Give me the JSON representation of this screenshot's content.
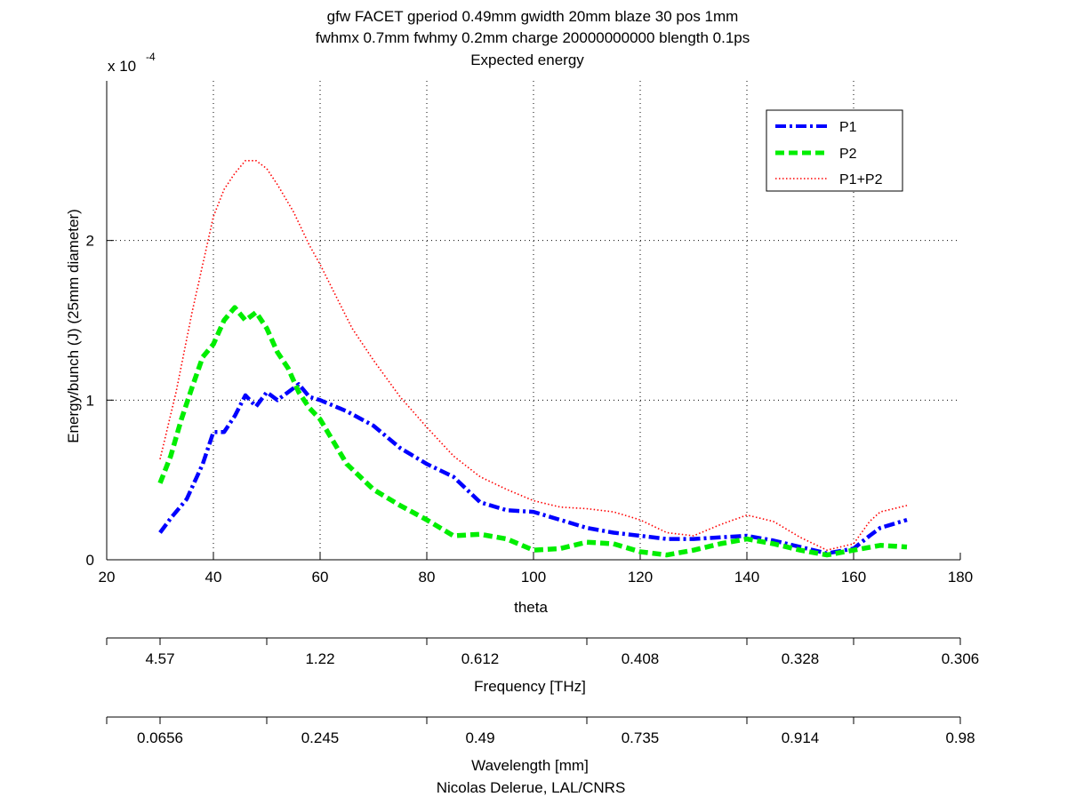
{
  "chart_data": {
    "type": "line",
    "title_lines": [
      "gfw FACET gperiod 0.49mm gwidth 20mm blaze 30 pos 1mm",
      "fwhmx 0.7mm fwhmy 0.2mm charge 20000000000 blength 0.1ps",
      "Expected energy"
    ],
    "xlabel": "theta",
    "ylabel": "Energy/bunch (J) (25mm diameter)",
    "y_multiplier": {
      "base": "x 10",
      "exponent": "-4"
    },
    "xlim": [
      20,
      180
    ],
    "ylim": [
      0,
      3
    ],
    "x_ticks": [
      20,
      40,
      60,
      80,
      100,
      120,
      140,
      160,
      180
    ],
    "x_tick_labels": [
      "20",
      "40",
      "60",
      "80",
      "100",
      "120",
      "140",
      "160",
      "180"
    ],
    "y_ticks": [
      0,
      1,
      2
    ],
    "y_tick_labels": [
      "0",
      "1",
      "2"
    ],
    "grid": true,
    "legend_position": "top-right",
    "series": [
      {
        "name": "P1",
        "color": "#0000ff",
        "style": "dashdot",
        "x": [
          30,
          32,
          35,
          38,
          40,
          42,
          44,
          46,
          48,
          50,
          52,
          54,
          56,
          58,
          60,
          65,
          70,
          75,
          80,
          85,
          90,
          95,
          100,
          105,
          110,
          115,
          120,
          125,
          130,
          135,
          140,
          145,
          150,
          155,
          160,
          163,
          165,
          170
        ],
        "y": [
          0.17,
          0.26,
          0.38,
          0.6,
          0.8,
          0.8,
          0.9,
          1.03,
          0.96,
          1.05,
          1.0,
          1.05,
          1.1,
          1.02,
          1.0,
          0.93,
          0.84,
          0.7,
          0.6,
          0.52,
          0.36,
          0.31,
          0.3,
          0.25,
          0.2,
          0.17,
          0.15,
          0.13,
          0.13,
          0.14,
          0.15,
          0.12,
          0.08,
          0.04,
          0.07,
          0.15,
          0.2,
          0.25
        ]
      },
      {
        "name": "P2",
        "color": "#00ee00",
        "style": "dashed",
        "x": [
          30,
          32,
          34,
          36,
          38,
          40,
          42,
          44,
          46,
          48,
          50,
          52,
          54,
          56,
          58,
          60,
          65,
          70,
          75,
          80,
          85,
          90,
          95,
          100,
          105,
          110,
          115,
          120,
          125,
          130,
          135,
          140,
          145,
          150,
          155,
          160,
          165,
          170
        ],
        "y": [
          0.48,
          0.65,
          0.88,
          1.08,
          1.27,
          1.35,
          1.5,
          1.58,
          1.5,
          1.55,
          1.45,
          1.3,
          1.2,
          1.05,
          0.95,
          0.88,
          0.6,
          0.44,
          0.34,
          0.25,
          0.15,
          0.16,
          0.13,
          0.06,
          0.07,
          0.11,
          0.1,
          0.05,
          0.03,
          0.06,
          0.1,
          0.13,
          0.1,
          0.06,
          0.03,
          0.06,
          0.09,
          0.08
        ]
      },
      {
        "name": "P1+P2",
        "color": "#ff0000",
        "style": "dotted",
        "x": [
          30,
          33,
          36,
          38,
          40,
          42,
          44,
          46,
          48,
          50,
          52,
          55,
          58,
          60,
          63,
          66,
          70,
          75,
          80,
          85,
          90,
          95,
          100,
          105,
          110,
          115,
          120,
          125,
          130,
          135,
          140,
          145,
          150,
          155,
          160,
          163,
          165,
          170
        ],
        "y": [
          0.63,
          1.05,
          1.55,
          1.85,
          2.15,
          2.32,
          2.42,
          2.5,
          2.5,
          2.45,
          2.35,
          2.18,
          1.97,
          1.85,
          1.65,
          1.45,
          1.25,
          1.02,
          0.83,
          0.65,
          0.52,
          0.44,
          0.37,
          0.33,
          0.32,
          0.3,
          0.25,
          0.17,
          0.15,
          0.22,
          0.28,
          0.24,
          0.14,
          0.06,
          0.1,
          0.24,
          0.3,
          0.34
        ]
      }
    ],
    "secondary_axes": [
      {
        "label": "Frequency [THz]",
        "tick_theta": [
          20,
          30,
          50,
          80,
          110,
          140,
          160,
          180
        ],
        "tick_labels": [
          "4.57",
          "1.22",
          "0.612",
          "0.408",
          "0.328",
          "0.306"
        ],
        "labeled_theta": [
          30,
          60,
          90,
          120,
          150,
          180
        ]
      },
      {
        "label": "Wavelength [mm]",
        "tick_theta": [
          20,
          30,
          50,
          80,
          110,
          140,
          160,
          180
        ],
        "tick_labels": [
          "0.0656",
          "0.245",
          "0.49",
          "0.735",
          "0.914",
          "0.98"
        ],
        "labeled_theta": [
          30,
          60,
          90,
          120,
          150,
          180
        ]
      }
    ],
    "credit": "Nicolas Delerue, LAL/CNRS"
  }
}
